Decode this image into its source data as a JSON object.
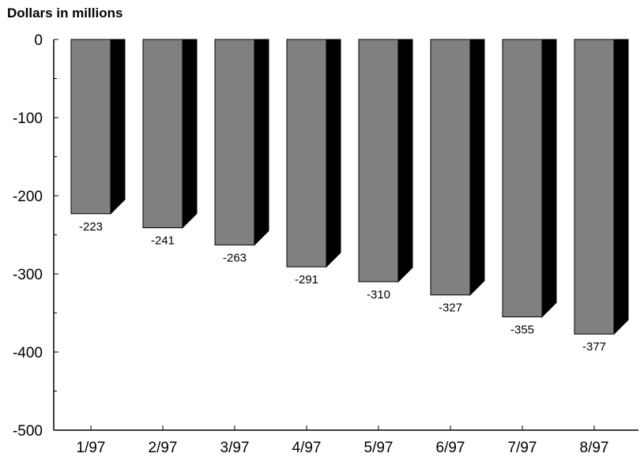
{
  "chart_data": {
    "type": "bar",
    "style": "3d",
    "title": "",
    "ylabel": "Dollars in millions",
    "xlabel": "",
    "categories": [
      "1/97",
      "2/97",
      "3/97",
      "4/97",
      "5/97",
      "6/97",
      "7/97",
      "8/97"
    ],
    "values": [
      -223,
      -241,
      -263,
      -291,
      -310,
      -327,
      -355,
      -377
    ],
    "data_labels": [
      "-223",
      "-241",
      "-263",
      "-291",
      "-310",
      "-327",
      "-355",
      "-377"
    ],
    "ylim": [
      -500,
      0
    ],
    "yticks": [
      0,
      -100,
      -200,
      -300,
      -400,
      -500
    ],
    "ytick_labels": [
      "0",
      "-100",
      "-200",
      "-300",
      "-400",
      "-500"
    ],
    "grid": false,
    "legend": "none",
    "colors": {
      "bar_front": "#808080",
      "bar_side": "#000000",
      "axis": "#000000"
    }
  }
}
